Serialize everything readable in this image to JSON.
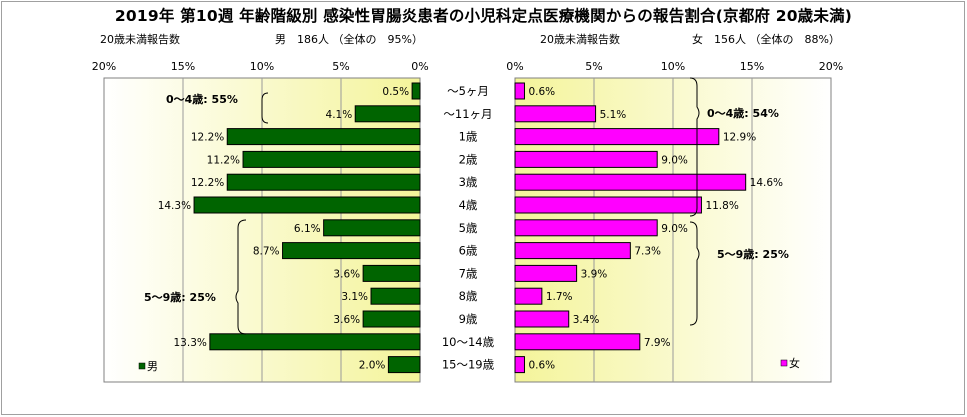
{
  "title": "2019年 第10週 年齢階級別 感染性胃腸炎患者の小児科定点医療機関からの報告割合(京都府 20歳未満)",
  "male": {
    "header_left": "20歳未満報告数",
    "header_right": "男　186人 （全体の　95%）",
    "legend": "男",
    "color": "#006400",
    "group_04": "0～4歳: 55%",
    "group_59": "5～9歳: 25%"
  },
  "female": {
    "header_left": "20歳未満報告数",
    "header_right": "女　156人 （全体の　88%）",
    "legend": "女",
    "color": "#ff00ff",
    "group_04": "0～4歳: 54%",
    "group_59": "5～9歳: 25%"
  },
  "chart_data": {
    "type": "bar",
    "categories": [
      "～5ヶ月",
      "～11ヶ月",
      "1歳",
      "2歳",
      "3歳",
      "4歳",
      "5歳",
      "6歳",
      "7歳",
      "8歳",
      "9歳",
      "10～14歳",
      "15～19歳"
    ],
    "series": [
      {
        "name": "男",
        "values": [
          0.5,
          4.1,
          12.2,
          11.2,
          12.2,
          14.3,
          6.1,
          8.7,
          3.6,
          3.1,
          3.6,
          13.3,
          2.0
        ]
      },
      {
        "name": "女",
        "values": [
          0.6,
          5.1,
          12.9,
          9.0,
          14.6,
          11.8,
          9.0,
          7.3,
          3.9,
          1.7,
          3.4,
          7.9,
          0.6
        ]
      }
    ],
    "xlim": [
      0,
      20
    ],
    "x_ticks": [
      "0%",
      "5%",
      "10%",
      "15%",
      "20%"
    ],
    "male_axis_ticks": [
      "20%",
      "15%",
      "10%",
      "5%",
      "0%"
    ],
    "grid": true
  }
}
